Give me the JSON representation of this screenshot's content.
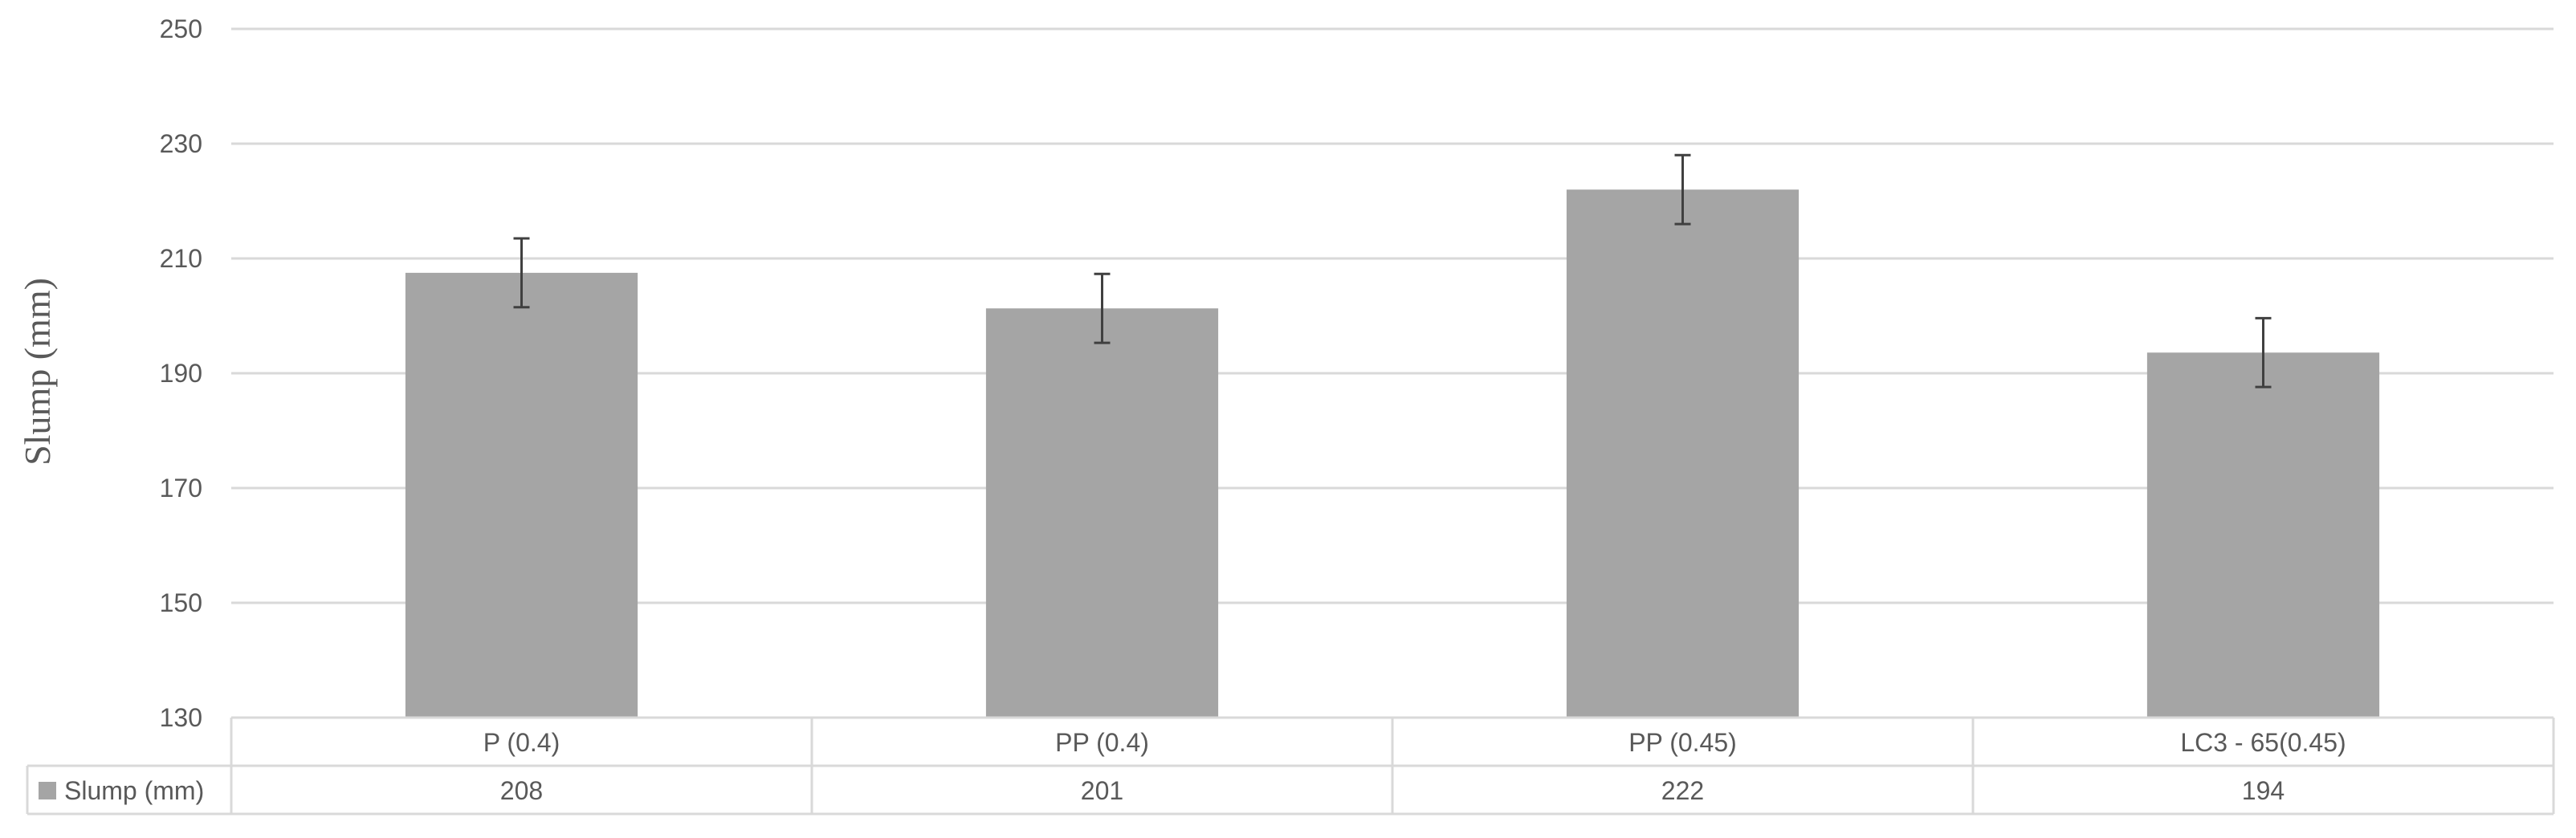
{
  "chart_data": {
    "type": "bar",
    "title": "",
    "xlabel": "",
    "ylabel": "Slump (mm)",
    "ylim": [
      130,
      250
    ],
    "yticks": [
      130,
      150,
      170,
      190,
      210,
      230,
      250
    ],
    "grid": true,
    "legend": "data-table",
    "categories": [
      "P (0.4)",
      "PP (0.4)",
      "PP (0.45)",
      "LC3 - 65(0.45)"
    ],
    "series": [
      {
        "name": "Slump (mm)",
        "values": [
          207.5,
          201.3,
          222,
          193.6
        ],
        "error": [
          6,
          6,
          6,
          6
        ],
        "table_values": [
          "208",
          "201",
          "222",
          "194"
        ]
      }
    ],
    "colors": {
      "bar": "#a5a5a5",
      "error_bar": "#404040",
      "grid": "#d9d9d9",
      "text": "#595959"
    }
  }
}
